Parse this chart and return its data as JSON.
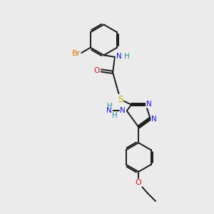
{
  "bg_color": "#ebebeb",
  "bond_color": "#1a1a1a",
  "bond_width": 1.4,
  "dbo": 0.055,
  "atom_colors": {
    "N": "#1414cc",
    "O": "#cc1414",
    "S": "#ccaa00",
    "Br": "#cc7700",
    "NH": "#2288aa",
    "H": "#2288aa"
  },
  "font_size": 7.5
}
